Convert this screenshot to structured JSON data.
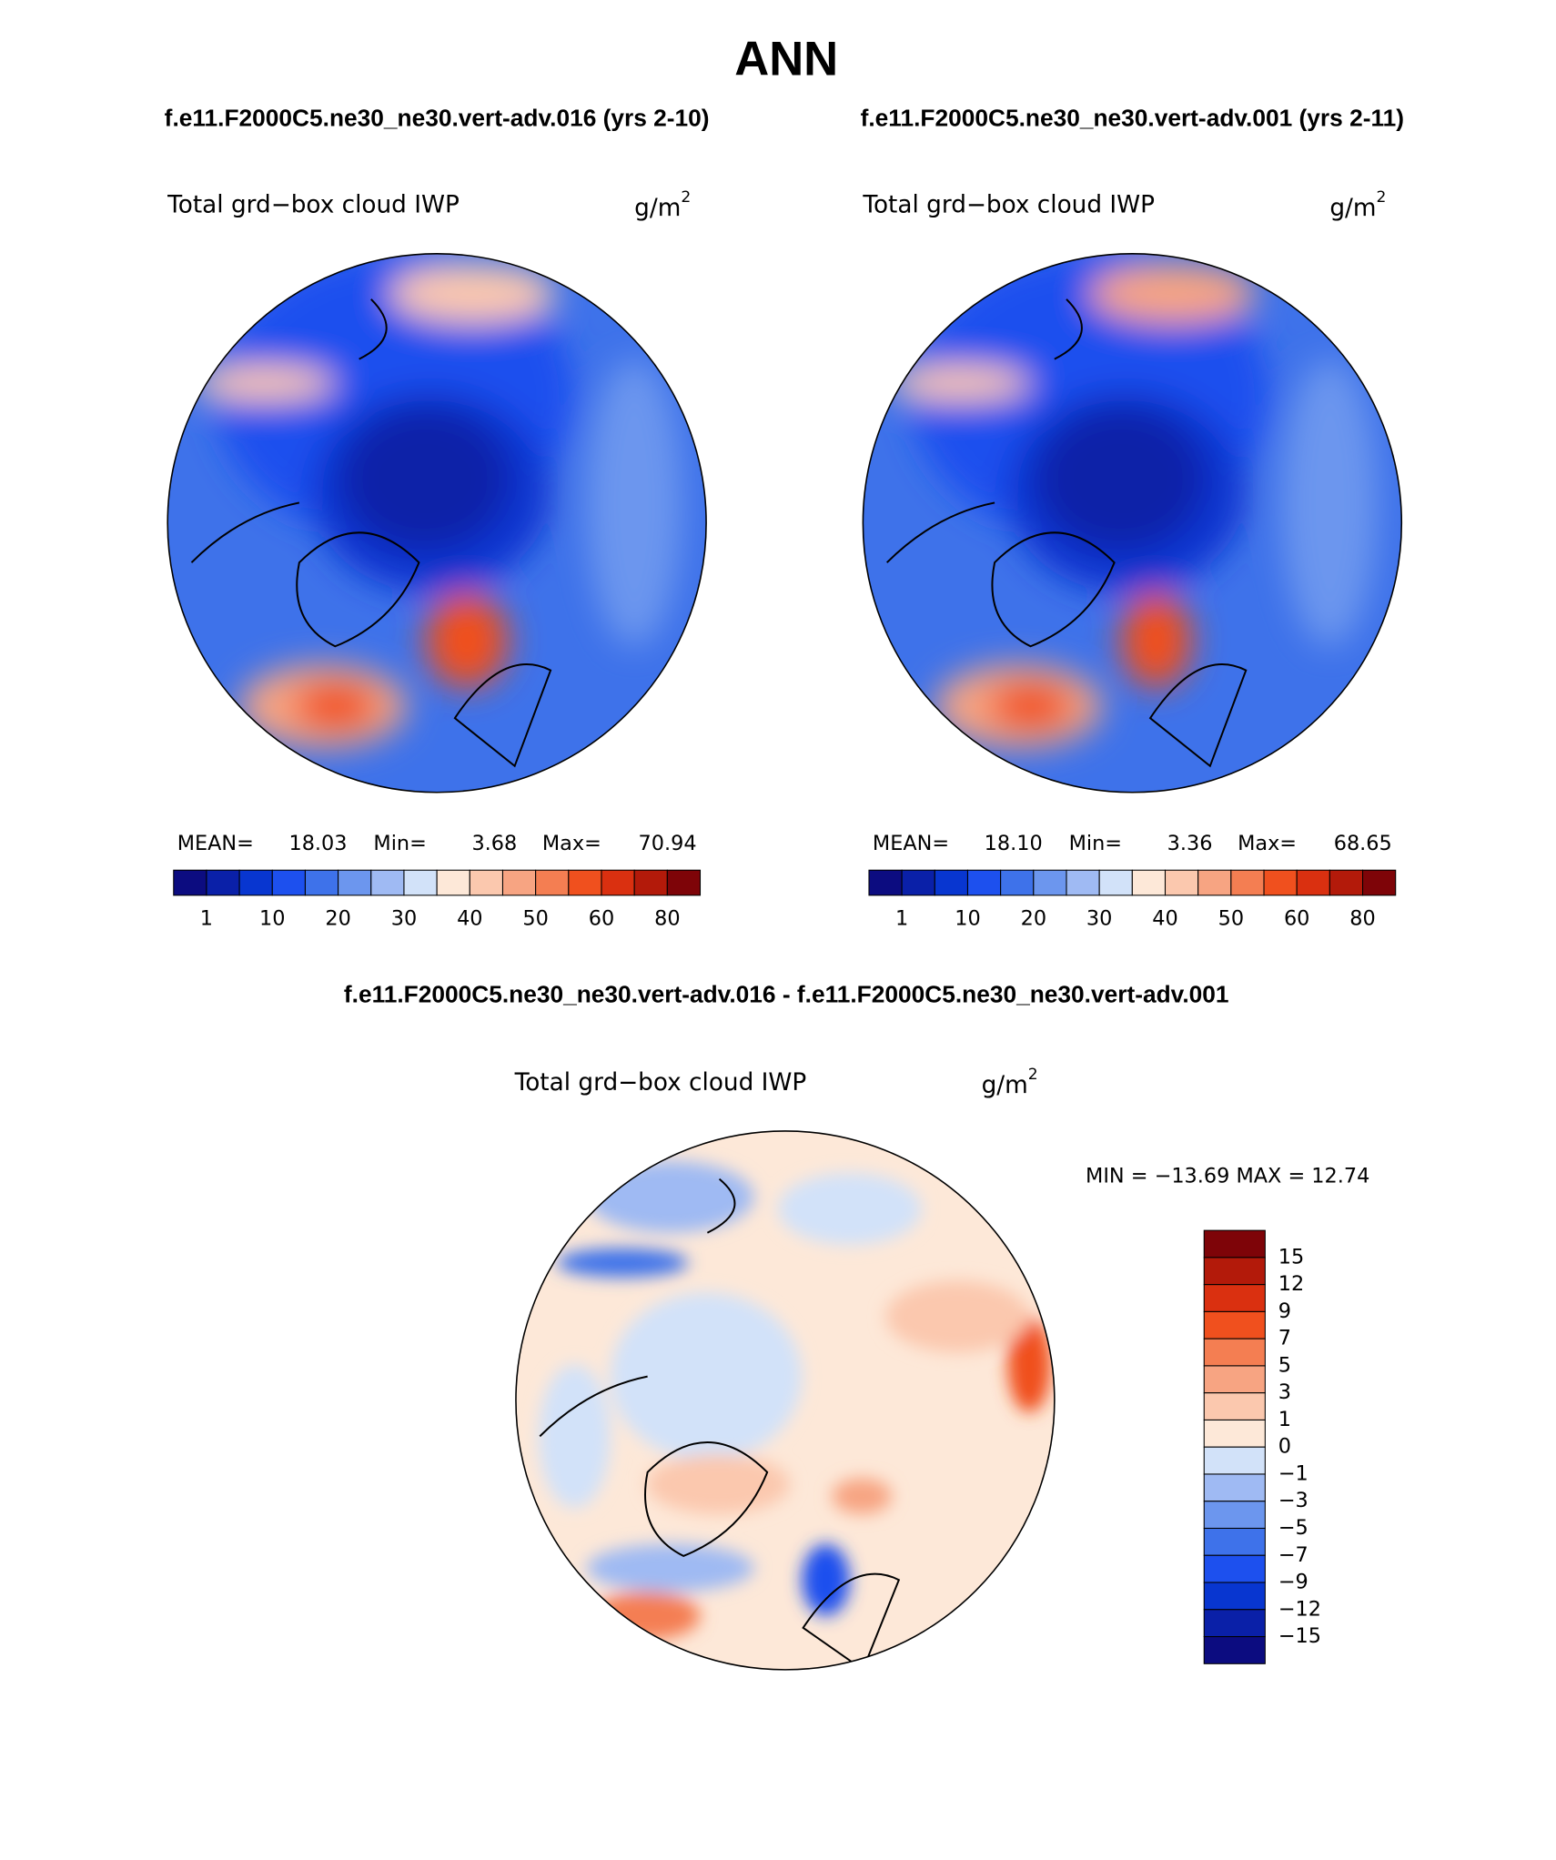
{
  "header": {
    "title": "ANN"
  },
  "panels": [
    {
      "caption": "f.e11.F2000C5.ne30_ne30.vert-adv.016 (yrs 2-10)",
      "field": "Total grd−box cloud IWP",
      "units": "g/m",
      "units_exponent": "2",
      "stats": [
        "MEAN=",
        "18.03",
        "Min=",
        "3.68",
        "Max=",
        "70.94"
      ]
    },
    {
      "caption": "f.e11.F2000C5.ne30_ne30.vert-adv.001 (yrs 2-11)",
      "field": "Total grd−box cloud IWP",
      "units": "g/m",
      "units_exponent": "2",
      "stats": [
        "MEAN=",
        "18.10",
        "Min=",
        "3.36",
        "Max=",
        "68.65"
      ]
    },
    {
      "caption": "f.e11.F2000C5.ne30_ne30.vert-adv.016 - f.e11.F2000C5.ne30_ne30.vert-adv.001",
      "field": "Total grd−box cloud IWP",
      "units": "g/m",
      "units_exponent": "2",
      "stats": "MIN = −13.69 MAX =  12.74"
    }
  ],
  "colorbars": {
    "colors": [
      "#0c0c80",
      "#0a20a8",
      "#0836d0",
      "#1d50ee",
      "#3e72ea",
      "#6c96ee",
      "#9fbaf3",
      "#d2e2f9",
      "#fde8d8",
      "#fbc8ae",
      "#f7a482",
      "#f47e52",
      "#f0501e",
      "#da3010",
      "#b31a0a",
      "#7e0408"
    ],
    "top_labels": [
      "1",
      "10",
      "20",
      "30",
      "40",
      "50",
      "60",
      "80"
    ],
    "diff_labels": [
      "15",
      "12",
      "9",
      "7",
      "5",
      "3",
      "1",
      "0",
      "−1",
      "−3",
      "−5",
      "−7",
      "−9",
      "−12",
      "−15"
    ]
  }
}
